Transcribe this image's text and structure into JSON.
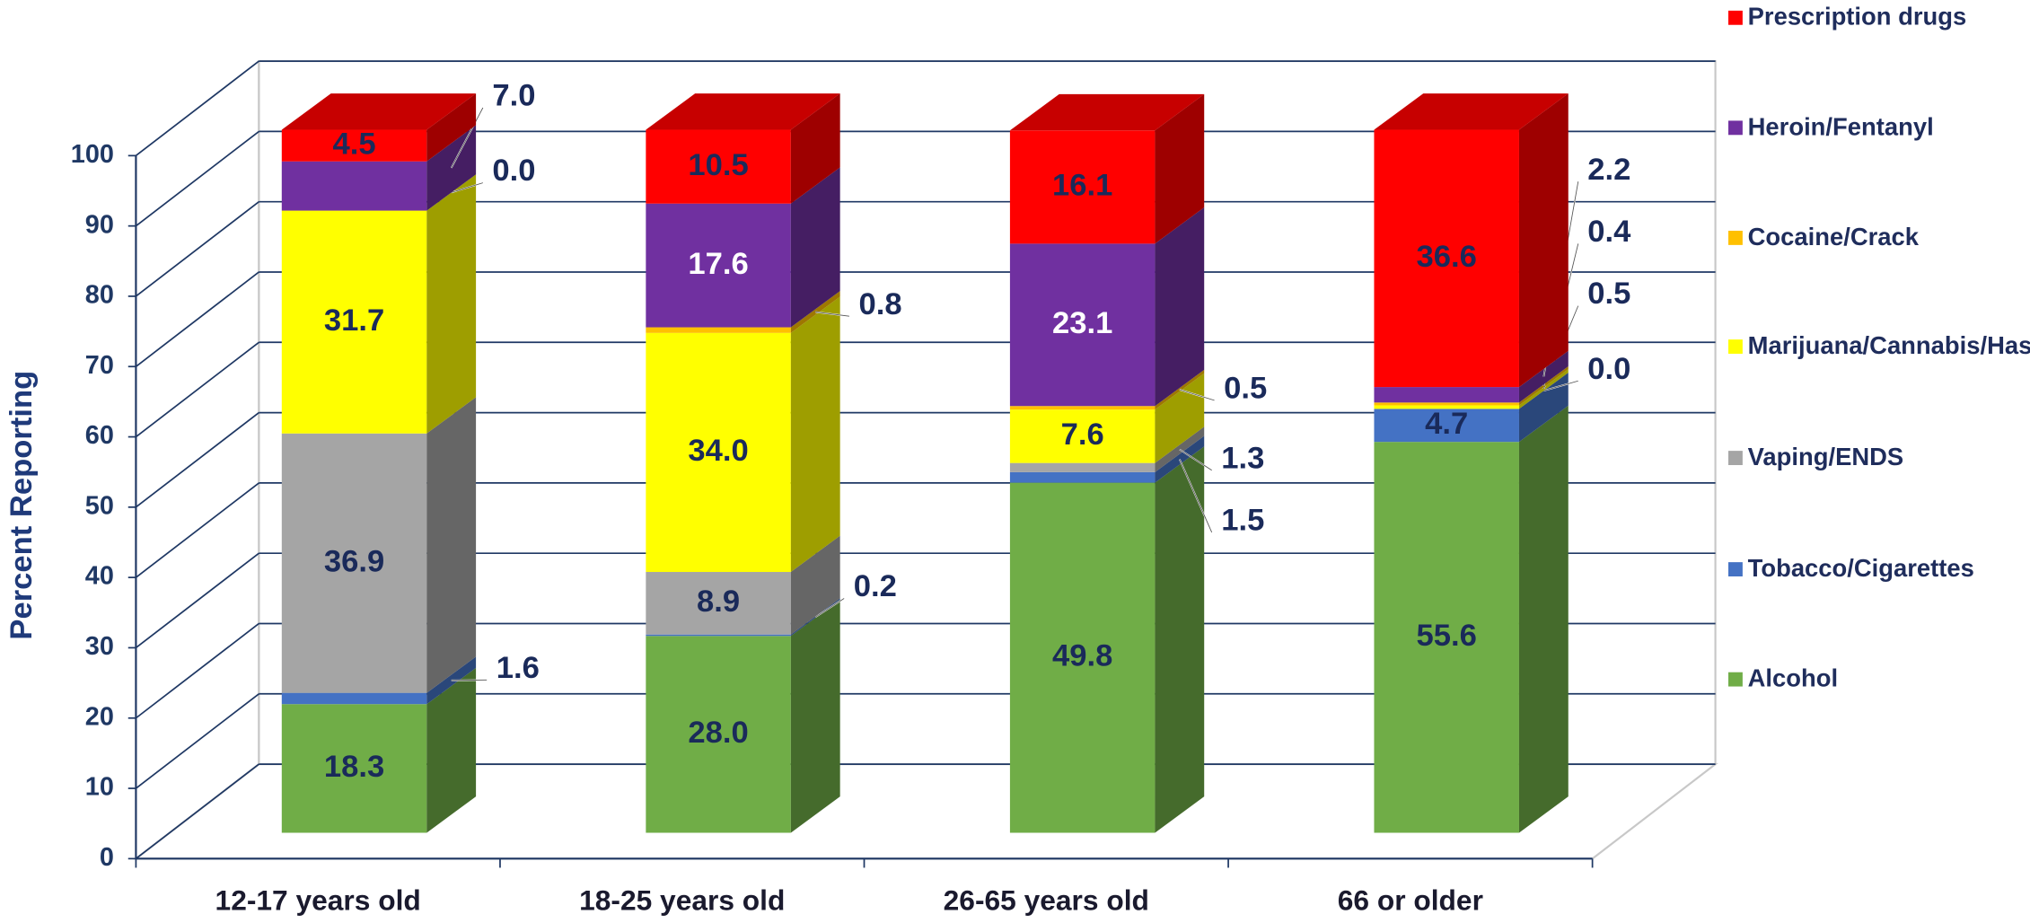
{
  "chart_data": {
    "type": "bar3d_stacked",
    "y_label": "Percent Reporting",
    "categories": [
      "12-17 years old",
      "18-25 years old",
      "26-65 years old",
      "66 or older"
    ],
    "series": [
      {
        "name": "Alcohol",
        "color": "#70ad47",
        "values": [
          18.3,
          28.0,
          49.8,
          55.6
        ],
        "value_labels": [
          "18.3",
          "28.0",
          "49.8",
          "55.6"
        ]
      },
      {
        "name": "Tobacco/Cigarettes",
        "color": "#4472c4",
        "values": [
          1.6,
          0.2,
          1.5,
          4.7
        ],
        "value_labels": [
          "1.6",
          "0.2",
          "1.5",
          "4.7"
        ]
      },
      {
        "name": "Vaping/ENDS",
        "color": "#a5a5a5",
        "values": [
          36.9,
          8.9,
          1.3,
          0.0
        ],
        "value_labels": [
          "36.9",
          "8.9",
          "1.3",
          "0.0"
        ]
      },
      {
        "name": "Marijuana/Cannabis/Hashish/THC",
        "color": "#ffff00",
        "values": [
          31.7,
          34.0,
          7.6,
          0.5
        ],
        "value_labels": [
          "31.7",
          "34.0",
          "7.6",
          "0.5"
        ]
      },
      {
        "name": "Cocaine/Crack",
        "color": "#ffc000",
        "values": [
          0.0,
          0.8,
          0.5,
          0.4
        ],
        "value_labels": [
          "0.0",
          "0.8",
          "0.5",
          "0.4"
        ]
      },
      {
        "name": "Heroin/Fentanyl",
        "color": "#7030a0",
        "values": [
          7.0,
          17.6,
          23.1,
          2.2
        ],
        "value_labels": [
          "7.0",
          "17.6",
          "23.1",
          "2.2"
        ]
      },
      {
        "name": "Prescription drugs",
        "color": "#ff0000",
        "values": [
          4.5,
          10.5,
          16.1,
          36.6
        ],
        "value_labels": [
          "4.5",
          "10.5",
          "16.1",
          "36.6"
        ]
      }
    ],
    "ylim": [
      0,
      100
    ],
    "yticks": [
      0,
      10,
      20,
      30,
      40,
      50,
      60,
      70,
      80,
      90,
      100
    ],
    "grid": true,
    "legend": "right"
  }
}
